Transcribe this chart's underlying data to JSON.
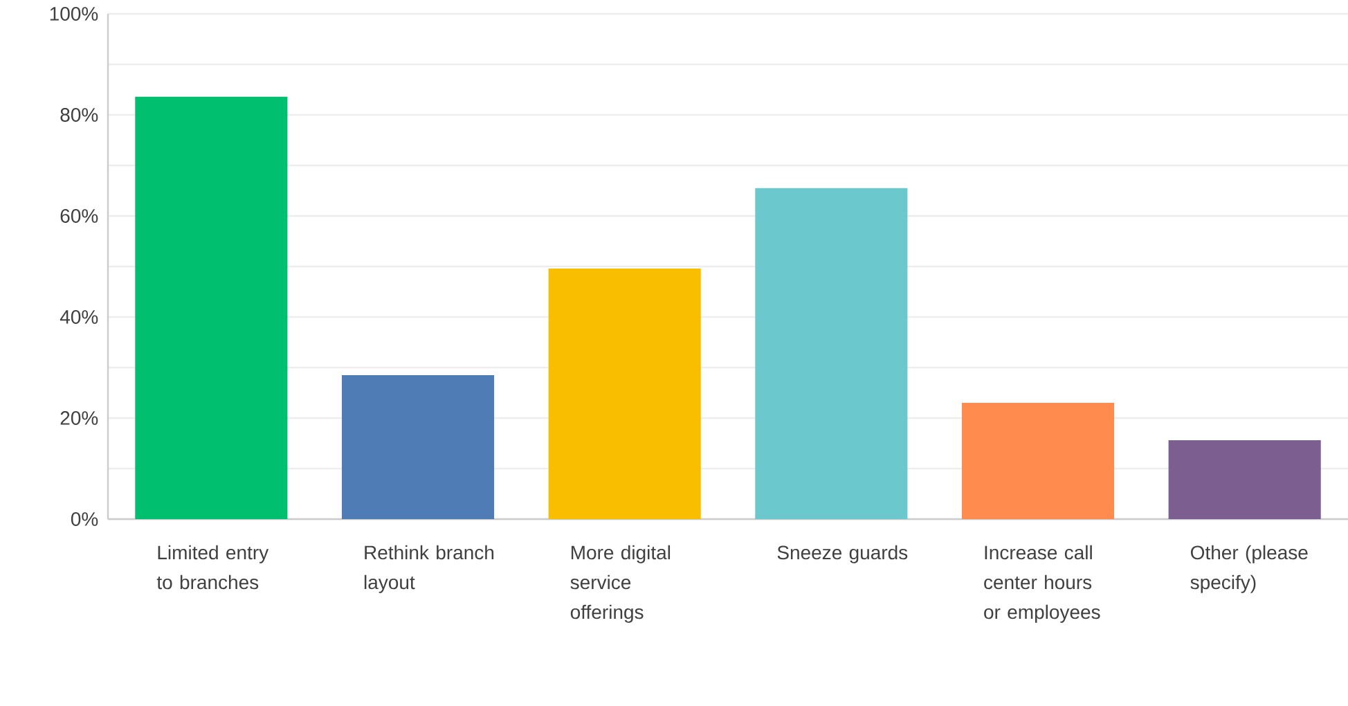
{
  "chart_data": {
    "type": "bar",
    "categories": [
      "Limited entry to branches",
      "Rethink branch layout",
      "More digital service offerings",
      "Sneeze guards",
      "Increase call center hours or employees",
      "Other (please specify)"
    ],
    "values": [
      83.6,
      28.5,
      49.6,
      65.5,
      23.0,
      15.6
    ],
    "colors": [
      "#00bf6f",
      "#507cb6",
      "#f9be00",
      "#6bc8cd",
      "#ff8b4f",
      "#7d5e90"
    ],
    "ylim": [
      0,
      100
    ],
    "yticks": [
      {
        "value": 0,
        "label": "0%"
      },
      {
        "value": 10,
        "label": null
      },
      {
        "value": 20,
        "label": "20%"
      },
      {
        "value": 30,
        "label": null
      },
      {
        "value": 40,
        "label": "40%"
      },
      {
        "value": 50,
        "label": null
      },
      {
        "value": 60,
        "label": "60%"
      },
      {
        "value": 70,
        "label": null
      },
      {
        "value": 80,
        "label": "80%"
      },
      {
        "value": 90,
        "label": null
      },
      {
        "value": 100,
        "label": "100%"
      }
    ],
    "grid": "y"
  }
}
